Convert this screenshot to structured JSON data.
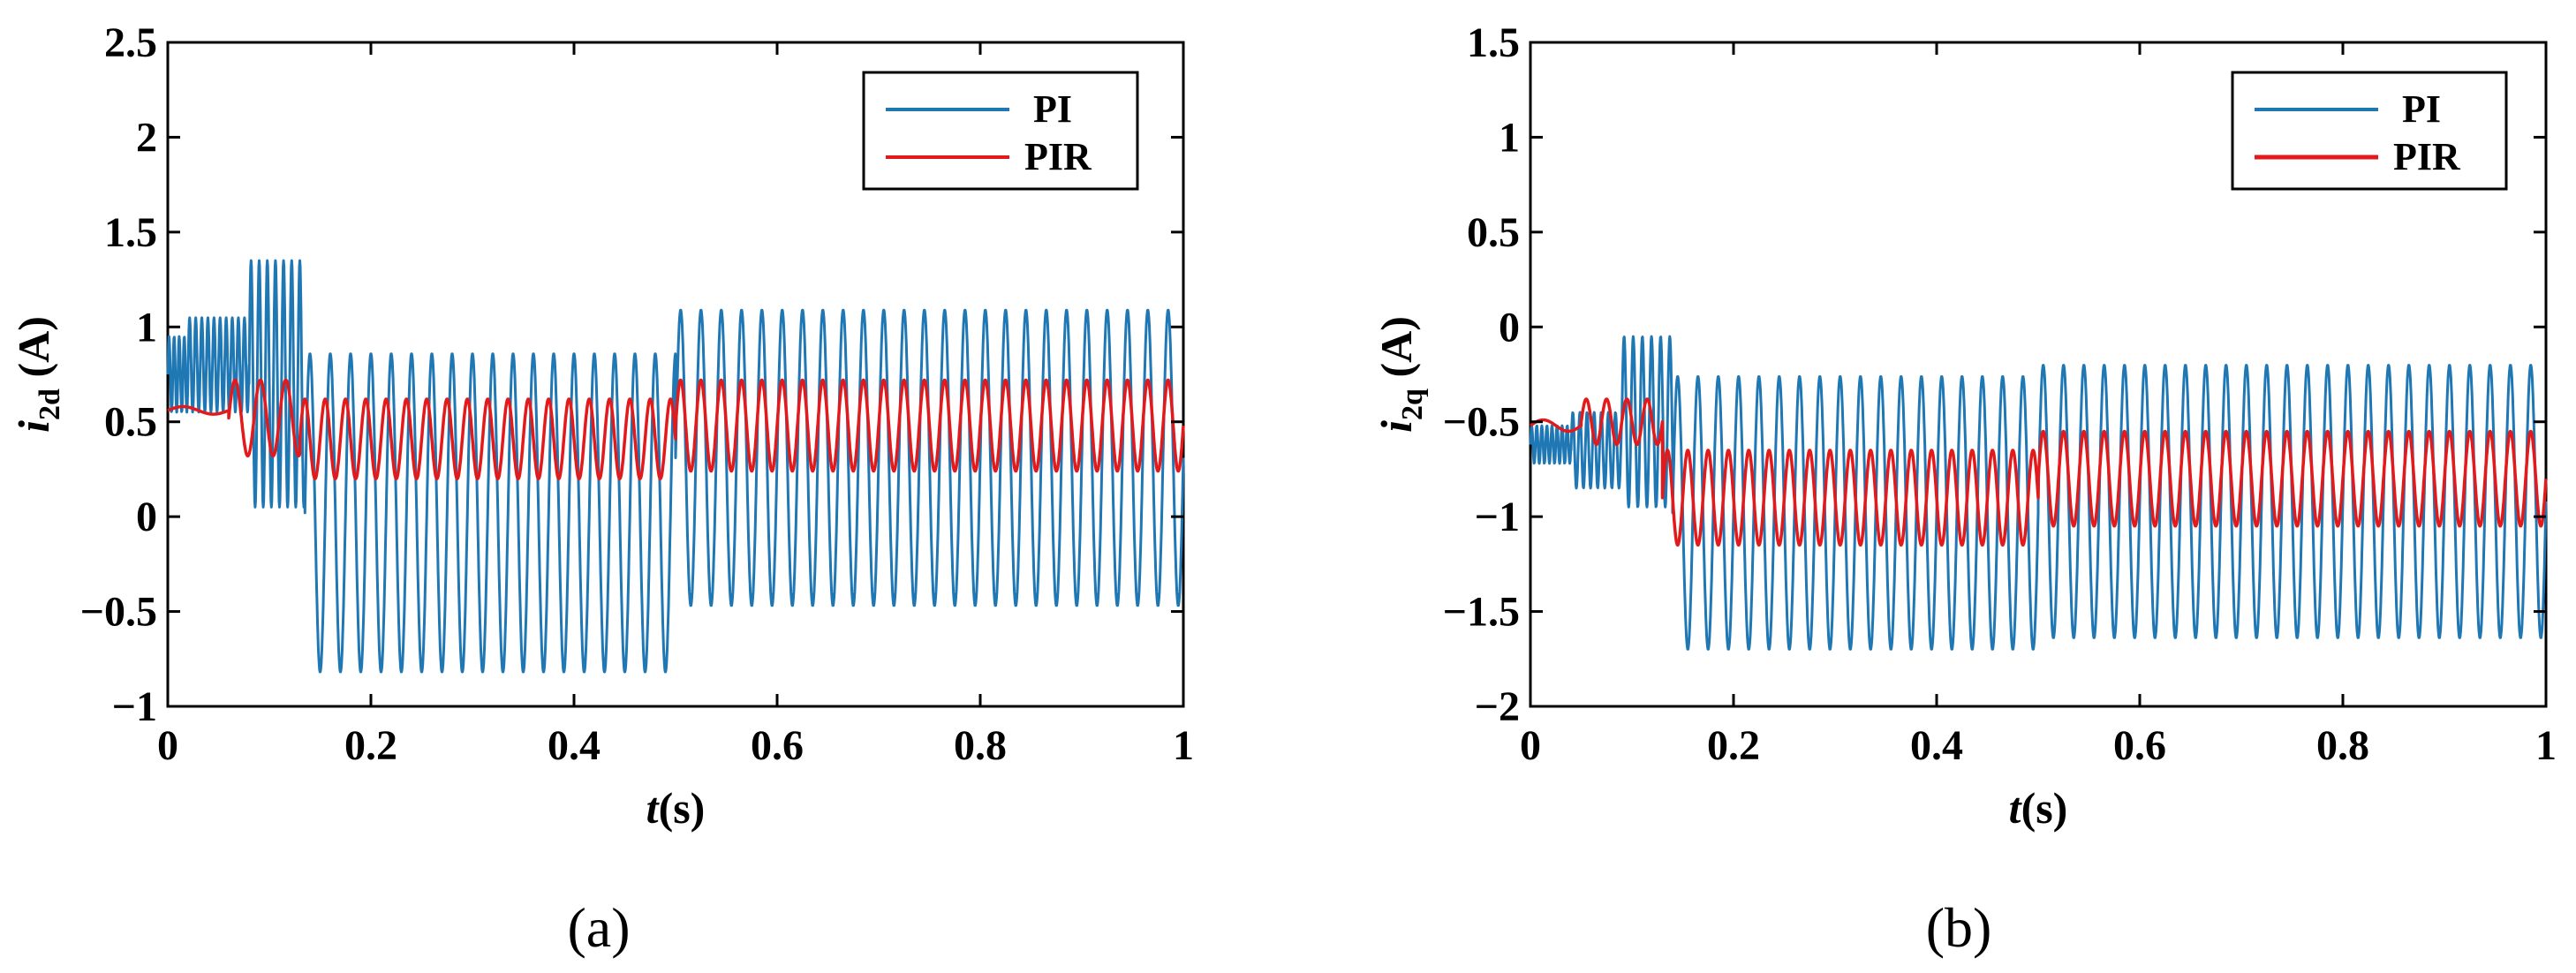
{
  "figure": {
    "captions": [
      "(a)",
      "(b)"
    ]
  },
  "chart_data": [
    {
      "type": "line",
      "panel": "(a)",
      "title": "",
      "xlabel_var": "t",
      "xlabel_unit": "(s)",
      "ylabel_var": "i",
      "ylabel_sub": "2d",
      "ylabel_unit": " (A)",
      "xlim": [
        0,
        1
      ],
      "ylim": [
        -1,
        2.5
      ],
      "xticks": [
        0,
        0.2,
        0.4,
        0.6,
        0.8,
        1
      ],
      "xtick_labels": [
        "0",
        "0.2",
        "0.4",
        "0.6",
        "0.8",
        "1"
      ],
      "yticks": [
        -1,
        -0.5,
        0,
        0.5,
        1,
        1.5,
        2,
        2.5
      ],
      "ytick_labels": [
        "−1",
        "−0.5",
        "0",
        "0.5",
        "1",
        "1.5",
        "2",
        "2.5"
      ],
      "grid": false,
      "legend_position": "top-right",
      "series": [
        {
          "name": "PI",
          "color": "#1f77b4",
          "segments": [
            {
              "t_start": 0.0,
              "t_end": 0.02,
              "center": 0.75,
              "amp": 0.2,
              "period": 0.005
            },
            {
              "t_start": 0.02,
              "t_end": 0.08,
              "center": 0.8,
              "amp": 0.25,
              "period": 0.006
            },
            {
              "t_start": 0.08,
              "t_end": 0.135,
              "center": 0.7,
              "amp": 0.65,
              "period": 0.008
            },
            {
              "t_start": 0.135,
              "t_end": 0.5,
              "center": 0.02,
              "amp": 0.84,
              "period": 0.02
            },
            {
              "t_start": 0.5,
              "t_end": 1.0,
              "center": 0.31,
              "amp": 0.78,
              "period": 0.02
            }
          ]
        },
        {
          "name": "PIR",
          "color": "#e31a1c",
          "segments": [
            {
              "t_start": 0.0,
              "t_end": 0.06,
              "center": 0.56,
              "amp": 0.02,
              "period": 0.06
            },
            {
              "t_start": 0.06,
              "t_end": 0.13,
              "center": 0.52,
              "amp": 0.2,
              "period": 0.025
            },
            {
              "t_start": 0.13,
              "t_end": 0.5,
              "center": 0.41,
              "amp": 0.21,
              "period": 0.02
            },
            {
              "t_start": 0.5,
              "t_end": 1.0,
              "center": 0.48,
              "amp": 0.24,
              "period": 0.02
            }
          ]
        }
      ]
    },
    {
      "type": "line",
      "panel": "(b)",
      "title": "",
      "xlabel_var": "t",
      "xlabel_unit": "(s)",
      "ylabel_var": "i",
      "ylabel_sub": "2q",
      "ylabel_unit": " (A)",
      "xlim": [
        0,
        1
      ],
      "ylim": [
        -2,
        1.5
      ],
      "xticks": [
        0,
        0.2,
        0.4,
        0.6,
        0.8,
        1
      ],
      "xtick_labels": [
        "0",
        "0.2",
        "0.4",
        "0.6",
        "0.8",
        "1"
      ],
      "yticks": [
        -2,
        -1.5,
        -1,
        -0.5,
        0,
        0.5,
        1,
        1.5
      ],
      "ytick_labels": [
        "−2",
        "−1.5",
        "−1",
        "−0.5",
        "0",
        "0.5",
        "1",
        "1.5"
      ],
      "grid": false,
      "legend_position": "top-right",
      "series": [
        {
          "name": "PI",
          "color": "#1f77b4",
          "segments": [
            {
              "t_start": 0.0,
              "t_end": 0.04,
              "center": -0.62,
              "amp": 0.1,
              "period": 0.005
            },
            {
              "t_start": 0.04,
              "t_end": 0.09,
              "center": -0.65,
              "amp": 0.2,
              "period": 0.007
            },
            {
              "t_start": 0.09,
              "t_end": 0.14,
              "center": -0.5,
              "amp": 0.45,
              "period": 0.009
            },
            {
              "t_start": 0.14,
              "t_end": 0.5,
              "center": -0.98,
              "amp": 0.72,
              "period": 0.02
            },
            {
              "t_start": 0.5,
              "t_end": 1.0,
              "center": -0.92,
              "amp": 0.72,
              "period": 0.02
            }
          ]
        },
        {
          "name": "PIR",
          "color": "#e31a1c",
          "segments": [
            {
              "t_start": 0.0,
              "t_end": 0.05,
              "center": -0.52,
              "amp": 0.03,
              "period": 0.05
            },
            {
              "t_start": 0.05,
              "t_end": 0.13,
              "center": -0.5,
              "amp": 0.12,
              "period": 0.02
            },
            {
              "t_start": 0.13,
              "t_end": 0.5,
              "center": -0.9,
              "amp": 0.25,
              "period": 0.02
            },
            {
              "t_start": 0.5,
              "t_end": 1.0,
              "center": -0.8,
              "amp": 0.25,
              "period": 0.02
            }
          ]
        }
      ]
    }
  ]
}
